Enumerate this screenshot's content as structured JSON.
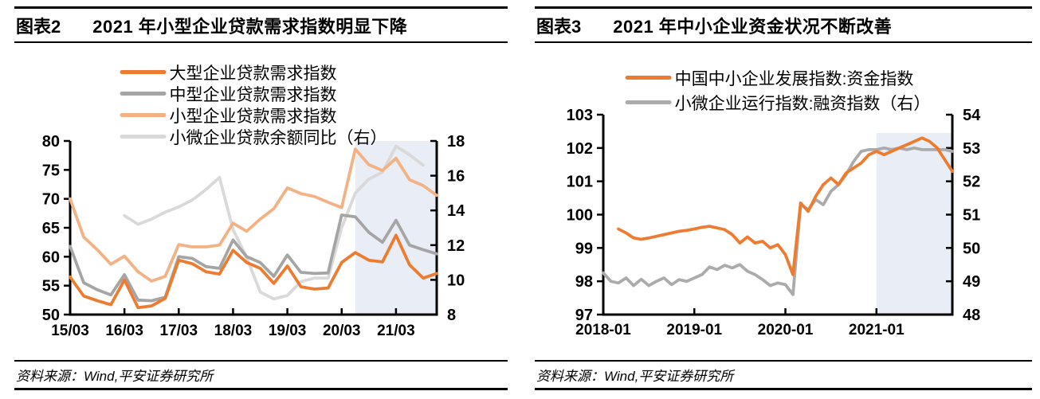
{
  "panels": [
    {
      "label": "图表2",
      "title": "2021 年小型企业贷款需求指数明显下降",
      "source": "资料来源：Wind,平安证券研究所"
    },
    {
      "label": "图表3",
      "title": "2021 年中小企业资金状况不断改善",
      "source": "资料来源：Wind,平安证券研究所"
    }
  ],
  "chart_data": [
    {
      "type": "line",
      "title": "2021年小型企业贷款需求指数明显下降",
      "categories": [
        "15/03",
        "15/06",
        "15/09",
        "15/12",
        "16/03",
        "16/06",
        "16/09",
        "16/12",
        "17/03",
        "17/06",
        "17/09",
        "17/12",
        "18/03",
        "18/06",
        "18/09",
        "18/12",
        "19/03",
        "19/06",
        "19/09",
        "19/12",
        "20/03",
        "20/06",
        "20/09",
        "20/12",
        "21/03",
        "21/06",
        "21/09",
        "21/12"
      ],
      "x_ticks": [
        {
          "index": 0,
          "label": "15/03"
        },
        {
          "index": 4,
          "label": "16/03"
        },
        {
          "index": 8,
          "label": "17/03"
        },
        {
          "index": 12,
          "label": "18/03"
        },
        {
          "index": 16,
          "label": "19/03"
        },
        {
          "index": 20,
          "label": "20/03"
        },
        {
          "index": 24,
          "label": "21/03"
        }
      ],
      "left_axis": {
        "min": 50,
        "max": 80,
        "ticks": [
          50,
          55,
          60,
          65,
          70,
          75,
          80
        ]
      },
      "right_axis": {
        "min": 8,
        "max": 18,
        "ticks": [
          8,
          10,
          12,
          14,
          16,
          18
        ]
      },
      "highlight": {
        "from": "20/06",
        "color": "#E9EDF6"
      },
      "legend_position": "top-center",
      "grid": false,
      "series": [
        {
          "name": "大型企业贷款需求指数",
          "color": "#ED7C31",
          "axis": "left",
          "values": [
            56.5,
            53.2,
            52.4,
            51.7,
            56.0,
            51.2,
            51.5,
            52.8,
            59.4,
            58.8,
            57.4,
            57.0,
            61.1,
            59.0,
            58.0,
            55.4,
            58.4,
            54.8,
            54.4,
            54.6,
            59.0,
            60.7,
            59.4,
            59.1,
            63.7,
            58.6,
            56.3,
            57.1
          ]
        },
        {
          "name": "中型企业贷款需求指数",
          "color": "#A5A5A5",
          "axis": "left",
          "values": [
            61.8,
            55.5,
            54.3,
            53.4,
            56.9,
            52.5,
            52.4,
            53.0,
            60.0,
            59.7,
            58.3,
            58.0,
            62.9,
            60.0,
            59.0,
            56.6,
            60.3,
            57.3,
            57.1,
            57.2,
            67.2,
            66.9,
            64.2,
            62.5,
            66.3,
            62.0,
            61.2,
            60.5
          ]
        },
        {
          "name": "小型企业贷款需求指数",
          "color": "#F4B183",
          "axis": "left",
          "values": [
            70.0,
            63.4,
            61.2,
            58.7,
            60.1,
            57.4,
            55.8,
            56.6,
            62.1,
            61.7,
            61.7,
            62.0,
            65.8,
            64.4,
            66.5,
            68.3,
            71.9,
            70.9,
            70.4,
            69.4,
            68.5,
            78.6,
            75.9,
            74.9,
            77.0,
            73.3,
            72.3,
            70.6
          ]
        },
        {
          "name": "小微企业贷款余额同比（右）",
          "color": "#D9D9D9",
          "axis": "right",
          "values": [
            null,
            null,
            null,
            null,
            13.7,
            13.2,
            13.5,
            13.9,
            14.2,
            14.6,
            15.2,
            15.9,
            12.9,
            11.3,
            9.3,
            8.9,
            9.1,
            9.9,
            10.1,
            10.1,
            13.0,
            15.0,
            15.8,
            16.2,
            17.7,
            17.2,
            16.6,
            null
          ]
        }
      ]
    },
    {
      "type": "line",
      "title": "2021年中小企业资金状况不断改善",
      "categories": [
        "2018-01",
        "2018-02",
        "2018-03",
        "2018-04",
        "2018-05",
        "2018-06",
        "2018-07",
        "2018-08",
        "2018-09",
        "2018-10",
        "2018-11",
        "2018-12",
        "2019-01",
        "2019-02",
        "2019-03",
        "2019-04",
        "2019-05",
        "2019-06",
        "2019-07",
        "2019-08",
        "2019-09",
        "2019-10",
        "2019-11",
        "2019-12",
        "2020-01",
        "2020-02",
        "2020-03",
        "2020-04",
        "2020-05",
        "2020-06",
        "2020-07",
        "2020-08",
        "2020-09",
        "2020-10",
        "2020-11",
        "2020-12",
        "2021-01",
        "2021-02",
        "2021-03",
        "2021-04",
        "2021-05",
        "2021-06",
        "2021-07",
        "2021-08",
        "2021-09",
        "2021-10",
        "2021-11"
      ],
      "x_ticks": [
        {
          "index": 0,
          "label": "2018-01"
        },
        {
          "index": 12,
          "label": "2019-01"
        },
        {
          "index": 24,
          "label": "2020-01"
        },
        {
          "index": 36,
          "label": "2021-01"
        }
      ],
      "left_axis": {
        "min": 97,
        "max": 103,
        "ticks": [
          97,
          98,
          99,
          100,
          101,
          102,
          103
        ]
      },
      "right_axis": {
        "min": 48,
        "max": 54,
        "ticks": [
          48,
          49,
          50,
          51,
          52,
          53,
          54
        ]
      },
      "highlight": {
        "from": "2021-01",
        "color": "#E9EDF6",
        "top_value": 102.45
      },
      "legend_position": "top-center",
      "grid": false,
      "series": [
        {
          "name": "中国中小企业发展指数:资金指数",
          "color": "#ED7C31",
          "axis": "left",
          "values": [
            null,
            null,
            99.57,
            99.45,
            99.3,
            99.26,
            99.3,
            99.35,
            99.4,
            99.45,
            99.5,
            99.53,
            99.57,
            99.62,
            99.65,
            99.6,
            99.55,
            99.4,
            99.15,
            99.33,
            99.15,
            99.2,
            99.0,
            99.1,
            98.8,
            98.2,
            100.35,
            100.1,
            100.55,
            100.9,
            101.1,
            100.9,
            101.25,
            101.4,
            101.55,
            101.8,
            101.9,
            101.8,
            101.9,
            102.0,
            102.1,
            102.2,
            102.3,
            102.2,
            102.0,
            101.65,
            101.3
          ]
        },
        {
          "name": "小微企业运行指数:融资指数（右）",
          "color": "#ABABAB",
          "axis": "right",
          "values": [
            49.25,
            49.0,
            48.95,
            49.1,
            48.87,
            49.06,
            48.87,
            49.0,
            49.1,
            48.9,
            49.05,
            49.0,
            49.1,
            49.2,
            49.43,
            49.35,
            49.48,
            49.4,
            49.5,
            49.3,
            49.2,
            49.05,
            48.87,
            48.95,
            48.9,
            48.6,
            51.3,
            51.15,
            51.45,
            51.3,
            51.7,
            51.9,
            52.2,
            52.6,
            52.9,
            52.95,
            52.95,
            53.0,
            52.95,
            53.0,
            52.95,
            53.0,
            52.95,
            52.95,
            52.95,
            52.95,
            52.9
          ]
        }
      ]
    }
  ]
}
